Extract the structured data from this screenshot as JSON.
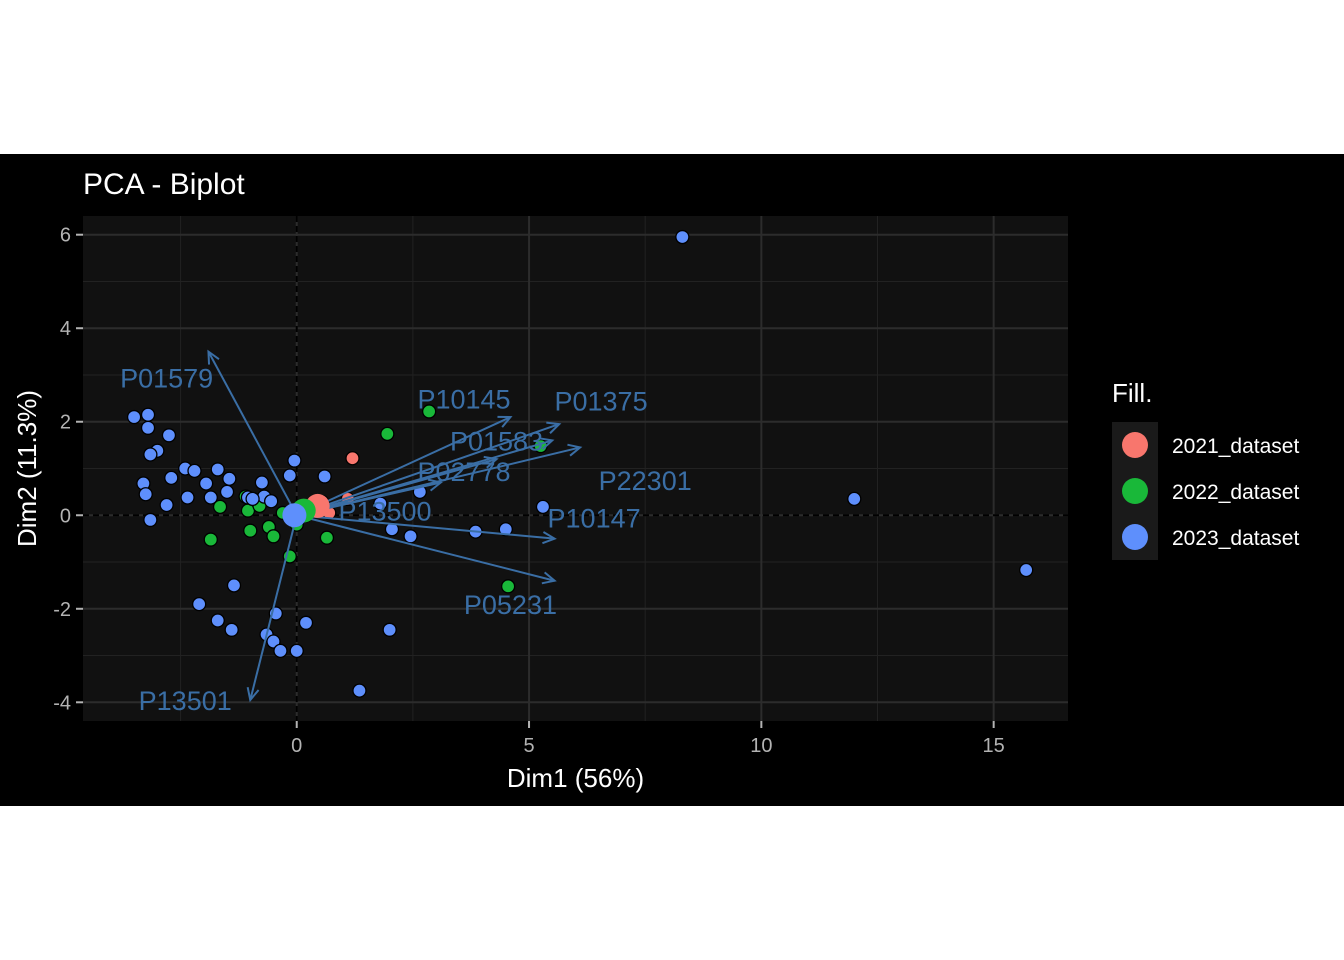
{
  "chart_data": {
    "type": "scatter",
    "title": "PCA - Biplot",
    "xlabel": "Dim1 (56%)",
    "ylabel": "Dim2 (11.3%)",
    "xlim": [
      -4.6,
      16.6
    ],
    "ylim": [
      -4.4,
      6.4
    ],
    "xticks": [
      0,
      5,
      10,
      15
    ],
    "yticks": [
      -4,
      -2,
      0,
      2,
      4,
      6
    ],
    "grid": true,
    "legend": {
      "title": "Fill.",
      "position": "right"
    },
    "colors": {
      "2021_dataset": "#f8766d",
      "2022_dataset": "#19b839",
      "2023_dataset": "#5e8ffc",
      "arrow": "#3a6ea5"
    },
    "series": [
      {
        "name": "2021_dataset",
        "points": [
          [
            1.2,
            1.22
          ],
          [
            0.55,
            0.28
          ],
          [
            1.1,
            0.35
          ],
          [
            0.4,
            0.1
          ],
          [
            0.7,
            0.05
          ],
          [
            0.2,
            0.15
          ]
        ]
      },
      {
        "name": "2022_dataset",
        "points": [
          [
            2.85,
            2.22
          ],
          [
            1.95,
            1.74
          ],
          [
            5.25,
            1.48
          ],
          [
            4.55,
            -1.52
          ],
          [
            -1.85,
            -0.52
          ],
          [
            -1.0,
            -0.33
          ],
          [
            0.65,
            -0.48
          ],
          [
            -0.15,
            -0.88
          ],
          [
            -1.65,
            0.18
          ],
          [
            -0.6,
            -0.25
          ],
          [
            -0.5,
            -0.45
          ],
          [
            -1.05,
            0.1
          ],
          [
            -0.3,
            0.05
          ],
          [
            0.0,
            -0.2
          ],
          [
            -0.8,
            0.2
          ],
          [
            -1.1,
            0.4
          ],
          [
            0.2,
            0.0
          ]
        ]
      },
      {
        "name": "2023_dataset",
        "points": [
          [
            8.3,
            5.95
          ],
          [
            12.0,
            0.35
          ],
          [
            15.7,
            -1.17
          ],
          [
            -3.5,
            2.1
          ],
          [
            -3.2,
            2.15
          ],
          [
            -3.2,
            1.87
          ],
          [
            -2.75,
            1.71
          ],
          [
            -3.0,
            1.38
          ],
          [
            -3.15,
            1.3
          ],
          [
            -2.7,
            0.8
          ],
          [
            -2.4,
            1.0
          ],
          [
            -2.2,
            0.95
          ],
          [
            -3.3,
            0.68
          ],
          [
            -3.25,
            0.45
          ],
          [
            -3.15,
            -0.1
          ],
          [
            -2.8,
            0.22
          ],
          [
            -2.35,
            0.38
          ],
          [
            -1.85,
            0.38
          ],
          [
            -1.95,
            0.68
          ],
          [
            -1.7,
            0.98
          ],
          [
            -1.45,
            0.78
          ],
          [
            -1.5,
            0.5
          ],
          [
            -1.05,
            0.38
          ],
          [
            -0.7,
            0.4
          ],
          [
            -0.75,
            0.7
          ],
          [
            -0.95,
            0.35
          ],
          [
            -0.55,
            0.3
          ],
          [
            -0.15,
            0.85
          ],
          [
            -0.05,
            1.17
          ],
          [
            0.6,
            0.83
          ],
          [
            1.8,
            0.25
          ],
          [
            2.05,
            -0.3
          ],
          [
            2.45,
            -0.45
          ],
          [
            2.65,
            0.5
          ],
          [
            3.85,
            -0.35
          ],
          [
            4.5,
            -0.3
          ],
          [
            5.3,
            0.18
          ],
          [
            -2.1,
            -1.9
          ],
          [
            -1.7,
            -2.25
          ],
          [
            -1.4,
            -2.45
          ],
          [
            -1.35,
            -1.5
          ],
          [
            -0.45,
            -2.1
          ],
          [
            -0.65,
            -2.55
          ],
          [
            -0.5,
            -2.7
          ],
          [
            -0.35,
            -2.9
          ],
          [
            0.0,
            -2.9
          ],
          [
            0.2,
            -2.3
          ],
          [
            2.0,
            -2.45
          ],
          [
            1.35,
            -3.75
          ],
          [
            0.1,
            0.1
          ],
          [
            -0.1,
            0.0
          ]
        ]
      }
    ],
    "centroids": [
      {
        "name": "2021_dataset",
        "x": 0.45,
        "y": 0.2
      },
      {
        "name": "2022_dataset",
        "x": 0.15,
        "y": 0.1
      },
      {
        "name": "2023_dataset",
        "x": -0.05,
        "y": 0.0
      }
    ],
    "variables": [
      {
        "name": "P01579",
        "x": -1.9,
        "y": 3.5,
        "lx": -2.8,
        "ly": 2.95
      },
      {
        "name": "P10145",
        "x": 4.6,
        "y": 2.1,
        "lx": 3.6,
        "ly": 2.5
      },
      {
        "name": "P01375",
        "x": 5.65,
        "y": 1.95,
        "lx": 6.55,
        "ly": 2.45
      },
      {
        "name": "P01583",
        "x": 5.5,
        "y": 1.6,
        "lx": 4.3,
        "ly": 1.6
      },
      {
        "name": "P22301",
        "x": 6.1,
        "y": 1.45,
        "lx": 7.5,
        "ly": 0.75
      },
      {
        "name": "P02778",
        "x": 4.3,
        "y": 1.2,
        "lx": 3.6,
        "ly": 0.95
      },
      {
        "name": "P13500",
        "x": 3.1,
        "y": 0.7,
        "lx": 1.9,
        "ly": 0.1
      },
      {
        "name": "P10147",
        "x": 5.55,
        "y": -0.5,
        "lx": 6.4,
        "ly": -0.05
      },
      {
        "name": "P05231",
        "x": 5.55,
        "y": -1.4,
        "lx": 4.6,
        "ly": -1.9
      },
      {
        "name": "P13501",
        "x": -1.0,
        "y": -3.95,
        "lx": -2.4,
        "ly": -3.95
      }
    ]
  }
}
